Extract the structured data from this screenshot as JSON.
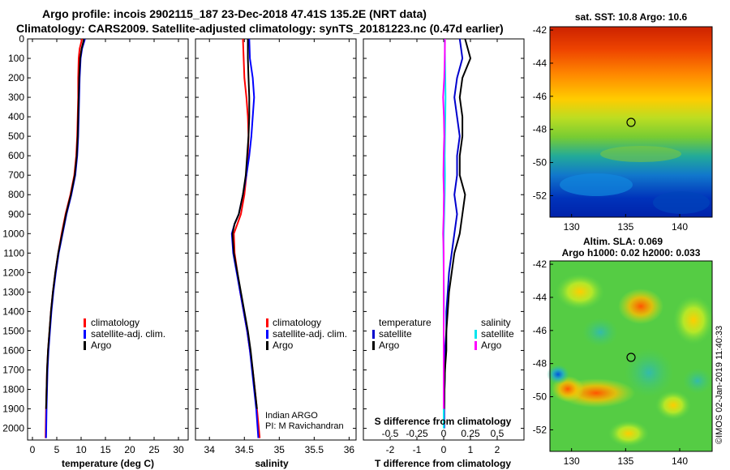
{
  "titles": {
    "line1": "Argo profile: incois 2902115_187 23-Dec-2018 47.41S 135.2E (NRT data)",
    "line2": "Climatology: CARS2009. Satellite-adjusted climatology: synTS_20181223.nc (0.47d earlier)"
  },
  "colors": {
    "climatology": "#ff0000",
    "satellite": "#0000ff",
    "argo": "#000000",
    "sat_t_diff": "#0000cd",
    "sat_s_diff": "#00e5ee",
    "argo_s_diff": "#ff00ff"
  },
  "chart_data": [
    {
      "name": "temperature",
      "type": "line",
      "xlabel": "temperature (deg C)",
      "xlim": [
        -1,
        32
      ],
      "xticks": [
        "0",
        "5",
        "10",
        "15",
        "20",
        "25",
        "30"
      ],
      "ylim": [
        0,
        2060
      ],
      "yticks": [
        "0",
        "100",
        "200",
        "300",
        "400",
        "500",
        "600",
        "700",
        "800",
        "900",
        "1000",
        "1100",
        "1200",
        "1300",
        "1400",
        "1500",
        "1600",
        "1700",
        "1800",
        "1900",
        "2000"
      ],
      "legend": [
        "climatology",
        "satellite-adj. clim.",
        "Argo"
      ],
      "series": [
        {
          "name": "climatology",
          "color": "#ff0000",
          "x": [
            10.2,
            9.7,
            9.5,
            9.4,
            9.4,
            9.3,
            9.2,
            9.0,
            8.6,
            7.8,
            6.8,
            6.0,
            5.3,
            4.7,
            4.2,
            3.8,
            3.5,
            3.2,
            3.0,
            2.9,
            2.8,
            2.7
          ],
          "y": [
            0,
            50,
            100,
            200,
            300,
            400,
            500,
            600,
            700,
            800,
            900,
            1000,
            1100,
            1200,
            1300,
            1400,
            1500,
            1600,
            1700,
            1800,
            1900,
            2050
          ]
        },
        {
          "name": "satellite-adj. clim.",
          "color": "#0000ff",
          "x": [
            10.8,
            10.2,
            9.9,
            9.7,
            9.6,
            9.5,
            9.4,
            9.2,
            8.8,
            8.0,
            7.0,
            6.2,
            5.4,
            4.8,
            4.3,
            3.9,
            3.6,
            3.3,
            3.1,
            3.0,
            2.9,
            2.8
          ],
          "y": [
            0,
            50,
            100,
            200,
            300,
            400,
            500,
            600,
            700,
            800,
            900,
            1000,
            1100,
            1200,
            1300,
            1400,
            1500,
            1600,
            1700,
            1800,
            1900,
            2050
          ]
        },
        {
          "name": "Argo",
          "color": "#000000",
          "x": [
            10.6,
            10.1,
            9.8,
            9.6,
            9.5,
            9.4,
            9.3,
            9.1,
            8.7,
            7.9,
            6.9,
            6.1,
            5.3,
            4.7,
            4.2,
            3.8,
            3.5,
            3.2,
            3.0,
            2.9,
            2.8
          ],
          "y": [
            0,
            50,
            100,
            200,
            300,
            400,
            500,
            600,
            700,
            800,
            900,
            1000,
            1100,
            1200,
            1300,
            1400,
            1500,
            1600,
            1700,
            1800,
            1900
          ]
        }
      ]
    },
    {
      "name": "salinity",
      "type": "line",
      "xlabel": "salinity",
      "xlim": [
        33.8,
        36.1
      ],
      "xticks": [
        "34",
        "34.5",
        "35",
        "35.5",
        "36"
      ],
      "ylim": [
        0,
        2060
      ],
      "legend": [
        "climatology",
        "satellite-adj. clim.",
        "Argo"
      ],
      "credit": [
        "Indian ARGO",
        "PI: M Ravichandran"
      ],
      "series": [
        {
          "name": "climatology",
          "color": "#ff0000",
          "x": [
            34.48,
            34.49,
            34.5,
            34.53,
            34.55,
            34.56,
            34.55,
            34.53,
            34.5,
            34.45,
            34.4,
            34.35,
            34.36,
            34.4,
            34.44,
            34.49,
            34.54,
            34.58,
            34.62,
            34.65,
            34.68,
            34.72
          ],
          "y": [
            0,
            100,
            200,
            300,
            400,
            500,
            600,
            700,
            800,
            900,
            950,
            1000,
            1100,
            1200,
            1300,
            1400,
            1500,
            1600,
            1700,
            1800,
            1900,
            2050
          ]
        },
        {
          "name": "satellite-adj. clim.",
          "color": "#0000ff",
          "x": [
            34.57,
            34.58,
            34.62,
            34.64,
            34.62,
            34.6,
            34.57,
            34.53,
            34.48,
            34.42,
            34.36,
            34.32,
            34.34,
            34.39,
            34.44,
            34.49,
            34.54,
            34.58,
            34.61,
            34.64,
            34.67,
            34.7
          ],
          "y": [
            0,
            100,
            200,
            300,
            400,
            500,
            600,
            700,
            800,
            900,
            950,
            1000,
            1100,
            1200,
            1300,
            1400,
            1500,
            1600,
            1700,
            1800,
            1900,
            2050
          ]
        },
        {
          "name": "Argo",
          "color": "#000000",
          "x": [
            34.55,
            34.55,
            34.56,
            34.57,
            34.57,
            34.56,
            34.54,
            34.52,
            34.48,
            34.42,
            34.36,
            34.33,
            34.35,
            34.4,
            34.45,
            34.5,
            34.55,
            34.59,
            34.62,
            34.65,
            34.68
          ],
          "y": [
            0,
            100,
            200,
            300,
            400,
            500,
            600,
            700,
            800,
            900,
            950,
            1000,
            1100,
            1200,
            1300,
            1400,
            1500,
            1600,
            1700,
            1800,
            1900
          ]
        }
      ]
    },
    {
      "name": "difference",
      "type": "line",
      "xlabel": "T difference from climatology",
      "xlabel_top": "S difference from climatology",
      "xlim": [
        -3,
        3
      ],
      "xticks": [
        "-2",
        "-1",
        "0",
        "1",
        "2"
      ],
      "s_xticks": [
        "-0.5",
        "-0.25",
        "0",
        "0.25",
        "0.5"
      ],
      "legend_left_title": "temperature",
      "legend_right_title": "salinity",
      "legend": [
        "satellite",
        "Argo",
        "satellite",
        "Argo"
      ],
      "series": [
        {
          "name": "T satellite",
          "color": "#0000cd",
          "x": [
            0.6,
            0.7,
            0.5,
            0.4,
            0.5,
            0.6,
            0.5,
            0.5,
            0.4,
            0.5,
            0.4,
            0.3,
            0.2,
            0.15,
            0.1,
            0.1,
            0.05,
            0.05,
            0.03,
            0.02,
            0.02
          ],
          "y": [
            0,
            100,
            200,
            300,
            400,
            500,
            600,
            700,
            800,
            900,
            1000,
            1100,
            1200,
            1300,
            1400,
            1500,
            1600,
            1700,
            1800,
            1900,
            2000
          ]
        },
        {
          "name": "T Argo",
          "color": "#000000",
          "x": [
            0.8,
            1.0,
            0.7,
            0.6,
            0.7,
            0.7,
            0.6,
            0.6,
            0.8,
            0.7,
            0.6,
            0.4,
            0.3,
            0.2,
            0.15,
            0.1,
            0.1,
            0.05,
            0.03,
            0.02
          ],
          "y": [
            0,
            100,
            200,
            300,
            400,
            500,
            600,
            700,
            800,
            900,
            1000,
            1100,
            1200,
            1300,
            1400,
            1500,
            1600,
            1700,
            1800,
            1900
          ]
        },
        {
          "name": "S satellite",
          "color": "#00e5ee",
          "x": [
            0.04,
            0.05,
            0.06,
            0.07,
            0.06,
            0.05,
            0.04,
            0.05,
            0.04,
            0.02,
            0.0,
            -0.01,
            0.0,
            0.01,
            0.01,
            0.0,
            0.0,
            0.0,
            0.0,
            0.0,
            0.0
          ],
          "y": [
            0,
            100,
            200,
            300,
            400,
            500,
            600,
            700,
            800,
            900,
            1000,
            1100,
            1200,
            1300,
            1400,
            1500,
            1600,
            1700,
            1800,
            1900,
            2000
          ]
        },
        {
          "name": "S Argo",
          "color": "#ff00ff",
          "x": [
            0.05,
            0.04,
            0.02,
            -0.02,
            0.01,
            0.02,
            0.0,
            -0.01,
            0.01,
            0.0,
            -0.02,
            0.0,
            0.0,
            0.0,
            0.0,
            0.0,
            0.0,
            0.0,
            0.0,
            0.0
          ],
          "y": [
            0,
            100,
            200,
            300,
            400,
            500,
            600,
            700,
            800,
            900,
            1000,
            1100,
            1200,
            1300,
            1400,
            1500,
            1600,
            1700,
            1800,
            1900
          ]
        }
      ]
    },
    {
      "name": "sst_map",
      "type": "heatmap",
      "title": "sat. SST: 10.8 Argo: 10.6",
      "xticks": [
        "130",
        "135",
        "140"
      ],
      "yticks": [
        "-42",
        "-44",
        "-46",
        "-48",
        "-50",
        "-52"
      ],
      "marker": {
        "lon": 135.2,
        "lat": -47.41
      }
    },
    {
      "name": "sla_map",
      "type": "heatmap",
      "title_line1": "Altim. SLA: 0.069",
      "title_line2": "Argo h1000: 0.02 h2000: 0.033",
      "xticks": [
        "130",
        "135",
        "140"
      ],
      "yticks": [
        "-42",
        "-44",
        "-46",
        "-48",
        "-50",
        "-52"
      ],
      "marker": {
        "lon": 135.2,
        "lat": -47.41
      }
    }
  ],
  "footer": "©IMOS 02-Jan-2019 11:40:33"
}
